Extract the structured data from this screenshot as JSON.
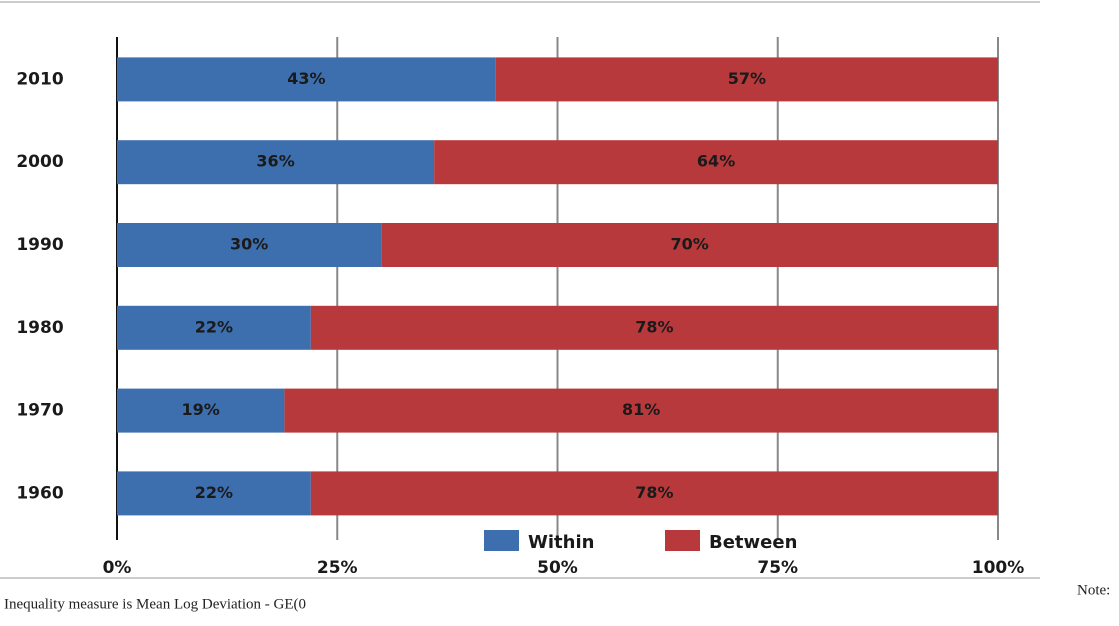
{
  "chart_data": {
    "type": "stacked-barh",
    "categories": [
      "2010",
      "2000",
      "1990",
      "1980",
      "1970",
      "1960"
    ],
    "series": [
      {
        "name": "Within",
        "color": "#3d6fae",
        "values": [
          43,
          36,
          30,
          22,
          19,
          22
        ],
        "value_labels": [
          "43%",
          "36%",
          "30%",
          "22%",
          "19%",
          "22%"
        ]
      },
      {
        "name": "Between",
        "color": "#b8393c",
        "values": [
          57,
          64,
          70,
          78,
          81,
          78
        ],
        "value_labels": [
          "57%",
          "64%",
          "70%",
          "78%",
          "81%",
          "78%"
        ]
      }
    ],
    "xlim": [
      0,
      100
    ],
    "xticks": [
      {
        "value": 0,
        "label": "0%"
      },
      {
        "value": 25,
        "label": "25%"
      },
      {
        "value": 50,
        "label": "50%"
      },
      {
        "value": 75,
        "label": "75%"
      },
      {
        "value": 100,
        "label": "100%"
      }
    ],
    "grid": true,
    "legend": "bottom"
  },
  "note": {
    "label": "Note:",
    "text": "Inequality measure is Mean Log Deviation - GE(0"
  }
}
